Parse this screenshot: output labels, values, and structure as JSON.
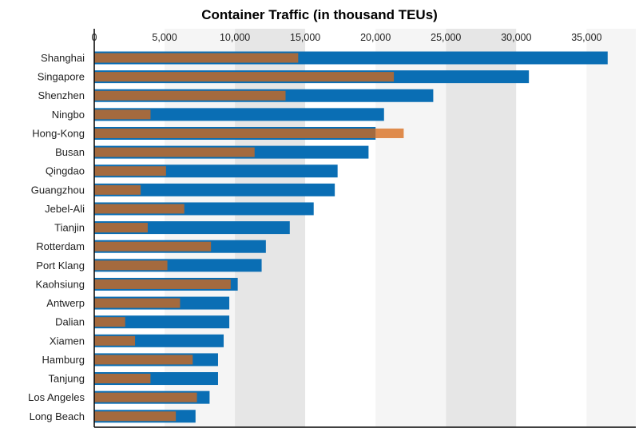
{
  "chart_data": {
    "type": "bar",
    "orientation": "horizontal",
    "title": "Container Traffic (in thousand TEUs)",
    "xlabel": "",
    "ylabel": "",
    "xlim": [
      0,
      38500
    ],
    "x_ticks": [
      0,
      5000,
      10000,
      15000,
      20000,
      25000,
      30000,
      35000
    ],
    "x_tick_labels": [
      "0",
      "5,000",
      "10,000",
      "15,000",
      "20,000",
      "25,000",
      "30,000",
      "35,000"
    ],
    "x_axis_position": "top",
    "grid": "alternating vertical bands",
    "legend": "none",
    "categories": [
      "Shanghai",
      "Singapore",
      "Shenzhen",
      "Ningbo",
      "Hong-Kong",
      "Busan",
      "Qingdao",
      "Guangzhou",
      "Jebel-Ali",
      "Tianjin",
      "Rotterdam",
      "Port Klang",
      "Kaohsiung",
      "Antwerp",
      "Dalian",
      "Xiamen",
      "Hamburg",
      "Tanjung",
      "Los Angeles",
      "Long Beach"
    ],
    "series": [
      {
        "color": "#0a6eb4",
        "values": [
          36500,
          30900,
          24100,
          20600,
          20000,
          19500,
          17300,
          17100,
          15600,
          13900,
          12200,
          11900,
          10200,
          9600,
          9600,
          9200,
          8800,
          8800,
          8200,
          7200
        ]
      },
      {
        "color": "#df8b4c",
        "values": [
          14500,
          21300,
          13600,
          4000,
          22000,
          11400,
          5100,
          3300,
          6400,
          3800,
          8300,
          5200,
          9700,
          6100,
          2200,
          2900,
          7000,
          4000,
          7300,
          5800
        ]
      }
    ],
    "overlap_color": "#a46a3e",
    "band_colors": [
      "#ffffff",
      "#f5f5f5",
      "#e6e6e6"
    ]
  }
}
